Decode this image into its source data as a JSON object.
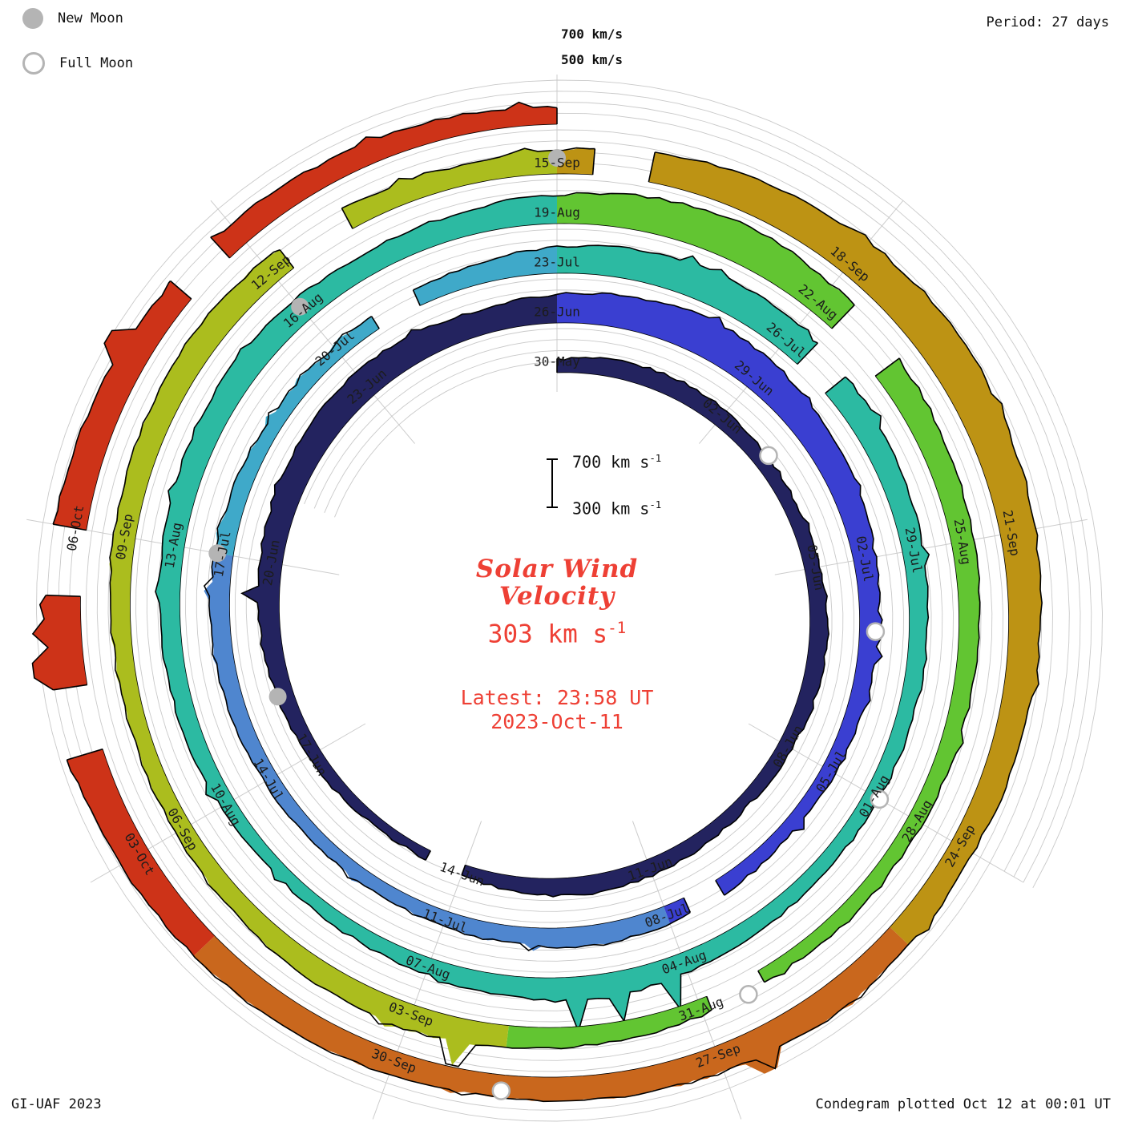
{
  "header": {
    "period": "Period: 27 days",
    "grid_label_700": "700 km/s",
    "grid_label_500": "500 km/s"
  },
  "legend": {
    "new_moon": "New Moon",
    "full_moon": "Full Moon"
  },
  "center": {
    "title_line1": "Solar Wind",
    "title_line2": "Velocity",
    "value_main": "303 km s",
    "value_sup": "-1",
    "latest_line1": "Latest: 23:58 UT",
    "latest_line2": "2023-Oct-11",
    "scale_top": "700 km s",
    "scale_bottom": "300 km s",
    "scale_sup": "-1"
  },
  "footer": {
    "left": "GI-UAF 2023",
    "right": "Condegram plotted Oct 12 at 00:01 UT"
  },
  "style": {
    "accent_red": "#ee4035",
    "grid_gray": "#c9c9c9",
    "moon_gray": "#b4b4b4"
  },
  "chart_data": {
    "type": "area",
    "variant": "polar-spiral-condegram",
    "title": "Solar Wind Velocity",
    "units": "km/s",
    "period_days": 27,
    "total_days": 135,
    "start_date": "2023-05-30",
    "end_date": "2023-10-11",
    "current_value_kms": 303,
    "latest_timestamp": "2023-Oct-11 23:58 UT",
    "radial_axis": {
      "min": 300,
      "max": 700,
      "gridlines": [
        400,
        500,
        600,
        700
      ]
    },
    "date_labels": [
      {
        "day": 0,
        "text": "30-May"
      },
      {
        "day": 3,
        "text": "02-Jun"
      },
      {
        "day": 6,
        "text": "05-Jun"
      },
      {
        "day": 9,
        "text": "08-Jun"
      },
      {
        "day": 12,
        "text": "11-Jun"
      },
      {
        "day": 15,
        "text": "14-Jun"
      },
      {
        "day": 18,
        "text": "17-Jun"
      },
      {
        "day": 21,
        "text": "20-Jun"
      },
      {
        "day": 24,
        "text": "23-Jun"
      },
      {
        "day": 27,
        "text": "26-Jun"
      },
      {
        "day": 30,
        "text": "29-Jun"
      },
      {
        "day": 33,
        "text": "02-Jul"
      },
      {
        "day": 36,
        "text": "05-Jul"
      },
      {
        "day": 39,
        "text": "08-Jul"
      },
      {
        "day": 42,
        "text": "11-Jul"
      },
      {
        "day": 45,
        "text": "14-Jul"
      },
      {
        "day": 48,
        "text": "17-Jul"
      },
      {
        "day": 51,
        "text": "20-Jul"
      },
      {
        "day": 54,
        "text": "23-Jul"
      },
      {
        "day": 57,
        "text": "26-Jul"
      },
      {
        "day": 60,
        "text": "29-Jul"
      },
      {
        "day": 63,
        "text": "01-Aug"
      },
      {
        "day": 66,
        "text": "04-Aug"
      },
      {
        "day": 69,
        "text": "07-Aug"
      },
      {
        "day": 72,
        "text": "10-Aug"
      },
      {
        "day": 75,
        "text": "13-Aug"
      },
      {
        "day": 78,
        "text": "16-Aug"
      },
      {
        "day": 81,
        "text": "19-Aug"
      },
      {
        "day": 84,
        "text": "22-Aug"
      },
      {
        "day": 87,
        "text": "25-Aug"
      },
      {
        "day": 90,
        "text": "28-Aug"
      },
      {
        "day": 93,
        "text": "31-Aug"
      },
      {
        "day": 96,
        "text": "03-Sep"
      },
      {
        "day": 99,
        "text": "06-Sep"
      },
      {
        "day": 102,
        "text": "09-Sep"
      },
      {
        "day": 105,
        "text": "12-Sep"
      },
      {
        "day": 108,
        "text": "15-Sep"
      },
      {
        "day": 111,
        "text": "18-Sep"
      },
      {
        "day": 114,
        "text": "21-Sep"
      },
      {
        "day": 117,
        "text": "24-Sep"
      },
      {
        "day": 120,
        "text": "27-Sep"
      },
      {
        "day": 123,
        "text": "30-Sep"
      },
      {
        "day": 126,
        "text": "03-Oct"
      },
      {
        "day": 129,
        "text": "06-Oct"
      }
    ],
    "color_segments": [
      {
        "start": 0,
        "end": 27,
        "color": "#23235f",
        "label": "30-May to 26-Jun"
      },
      {
        "start": 27,
        "end": 39,
        "color": "#3a3fd1",
        "label": "26-Jun to 08-Jul"
      },
      {
        "start": 39,
        "end": 48,
        "color": "#4f86cf",
        "label": "08-Jul to 17-Jul"
      },
      {
        "start": 48,
        "end": 54,
        "color": "#3fa9c9",
        "label": "17-Jul to 23-Jul"
      },
      {
        "start": 54,
        "end": 81,
        "color": "#2cbaa2",
        "label": "23-Jul to 19-Aug"
      },
      {
        "start": 81,
        "end": 95,
        "color": "#62c532",
        "label": "19-Aug to 02-Sep"
      },
      {
        "start": 95,
        "end": 108,
        "color": "#abbd1e",
        "label": "02-Sep to 15-Sep"
      },
      {
        "start": 108,
        "end": 118,
        "color": "#bd9314",
        "label": "15-Sep to 25-Sep"
      },
      {
        "start": 118,
        "end": 125,
        "color": "#c9671d",
        "label": "25-Sep to 02-Oct"
      },
      {
        "start": 125,
        "end": 135,
        "color": "#cd3318",
        "label": "02-Oct to 11-Oct"
      }
    ],
    "daily_velocity": [
      420,
      455,
      470,
      460,
      435,
      420,
      445,
      465,
      450,
      430,
      410,
      425,
      450,
      470,
      445,
      400,
      380,
      395,
      425,
      455,
      485,
      505,
      525,
      545,
      565,
      545,
      520,
      560,
      600,
      645,
      620,
      580,
      540,
      500,
      470,
      450,
      430,
      420,
      440,
      465,
      485,
      460,
      440,
      420,
      410,
      430,
      460,
      480,
      470,
      450,
      430,
      420,
      445,
      475,
      545,
      580,
      605,
      570,
      540,
      510,
      488,
      468,
      450,
      438,
      430,
      452,
      482,
      525,
      492,
      452,
      430,
      420,
      442,
      462,
      482,
      502,
      522,
      542,
      522,
      500,
      522,
      562,
      622,
      652,
      602,
      562,
      532,
      502,
      482,
      462,
      440,
      430,
      420,
      442,
      472,
      502,
      532,
      512,
      482,
      462,
      452,
      472,
      502,
      522,
      542,
      522,
      502,
      482,
      522,
      582,
      622,
      662,
      682,
      652,
      622,
      582,
      552,
      522,
      542,
      562,
      542,
      522,
      502,
      522,
      542,
      562,
      582,
      602,
      622,
      602,
      572,
      542,
      522,
      502,
      482,
      462
    ],
    "gaps": [
      [
        15.0,
        15.6
      ],
      [
        38.2,
        38.7
      ],
      [
        51.6,
        52.2
      ],
      [
        57.3,
        57.8
      ],
      [
        84.3,
        85.0
      ],
      [
        92.3,
        92.9
      ],
      [
        105.2,
        105.9
      ],
      [
        108.35,
        108.9
      ],
      [
        127.0,
        127.6
      ],
      [
        128.4,
        129.0
      ],
      [
        131.3,
        131.8
      ]
    ],
    "spikes": [
      {
        "day": 20.5,
        "v": 640
      },
      {
        "day": 66.2,
        "v": 780
      },
      {
        "day": 66.8,
        "v": 755
      },
      {
        "day": 67.3,
        "v": 795
      },
      {
        "day": 95.5,
        "v": 735
      },
      {
        "day": 119.6,
        "v": 705
      },
      {
        "day": 127.8,
        "v": 765
      },
      {
        "day": 128.1,
        "v": 740
      },
      {
        "day": 130.6,
        "v": 720
      }
    ],
    "moons": {
      "new_days": [
        19,
        48,
        78,
        108
      ],
      "full_days": [
        4,
        34,
        63,
        92.5,
        122
      ]
    }
  }
}
